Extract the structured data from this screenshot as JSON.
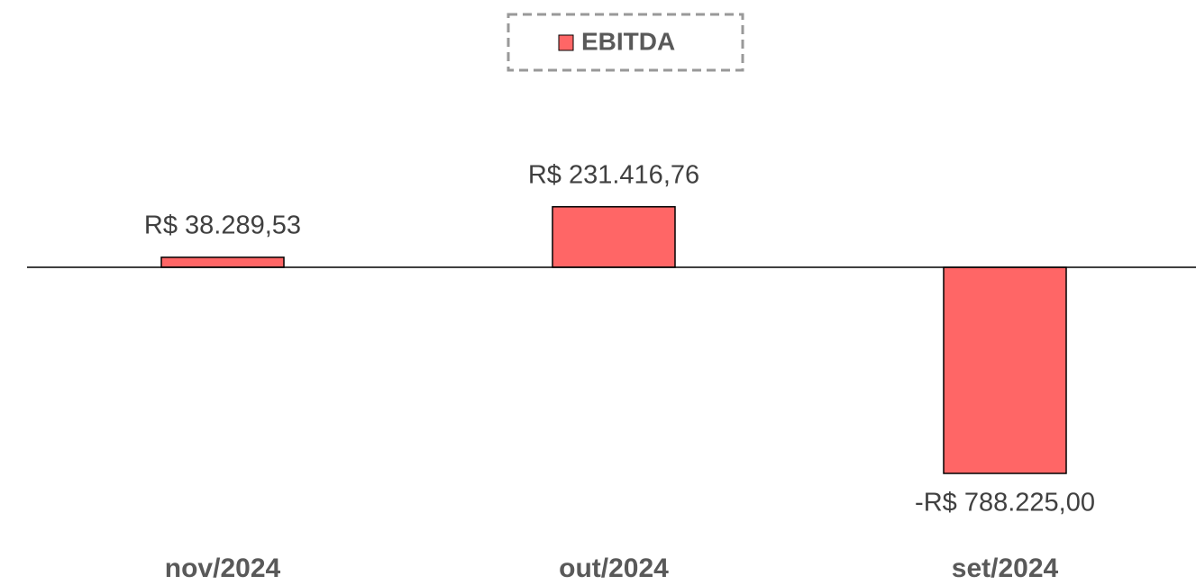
{
  "chart_data": {
    "type": "bar",
    "categories": [
      "nov/2024",
      "out/2024",
      "set/2024"
    ],
    "series": [
      {
        "name": "EBITDA",
        "color": "#ff6666",
        "values": [
          38289.53,
          231416.76,
          -788225.0
        ],
        "value_labels": [
          "R$ 38.289,53",
          "R$ 231.416,76",
          "-R$ 788.225,00"
        ]
      }
    ],
    "legend": "top"
  }
}
